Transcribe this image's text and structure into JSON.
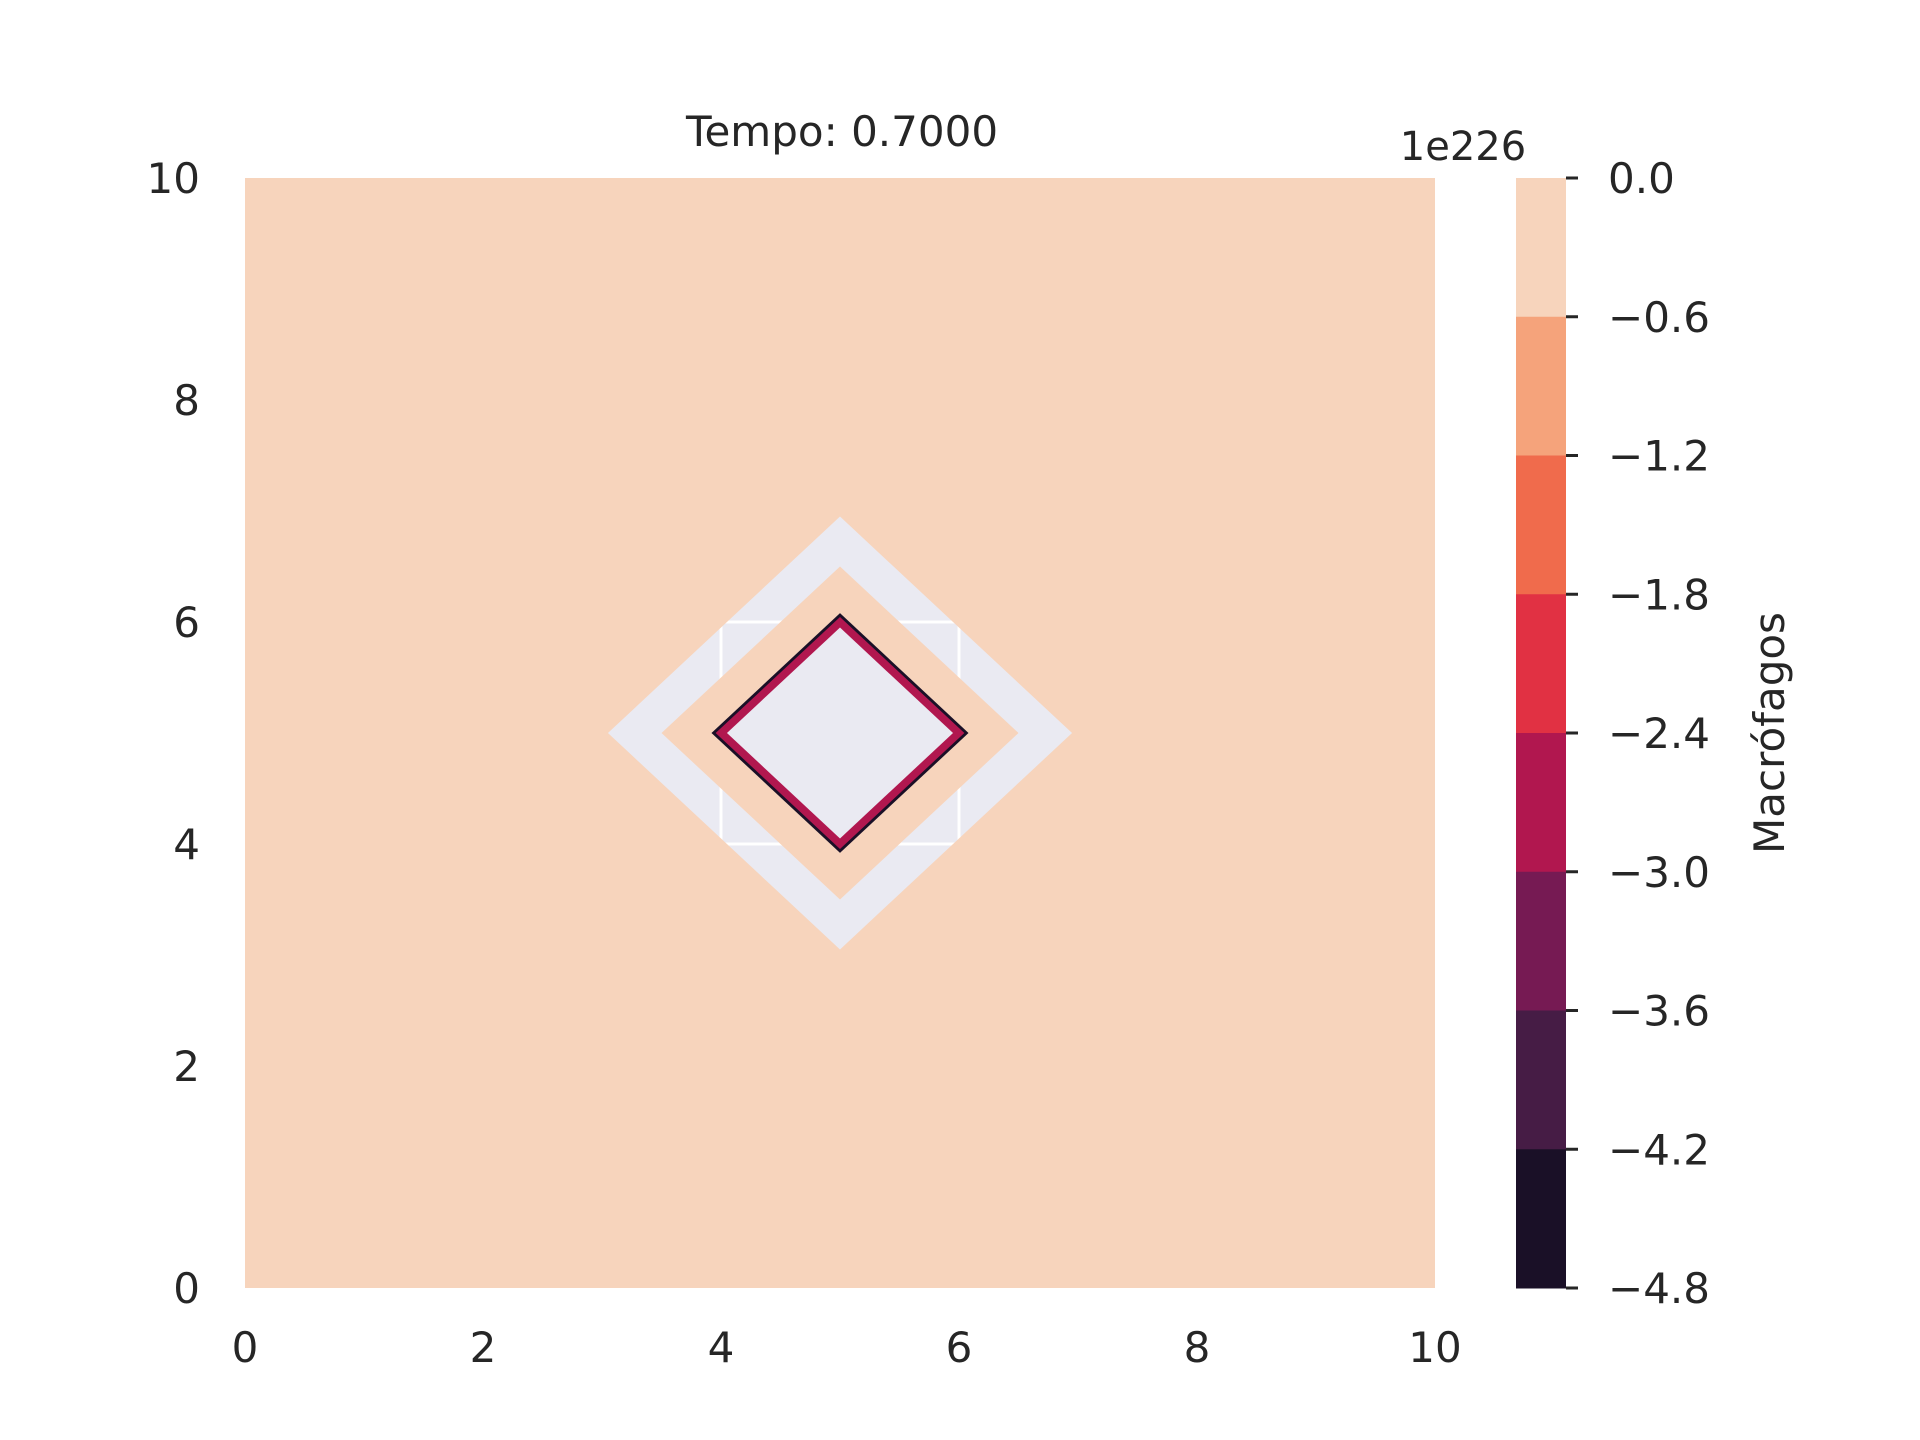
{
  "chart_data": {
    "type": "heatmap",
    "title": "Tempo: 0.7000",
    "xlabel": "",
    "ylabel": "",
    "xlim": [
      0,
      10
    ],
    "ylim": [
      0,
      10
    ],
    "x_ticks": [
      "0",
      "2",
      "4",
      "6",
      "8",
      "10"
    ],
    "y_ticks": [
      "0",
      "2",
      "4",
      "6",
      "8",
      "10"
    ],
    "grid": true,
    "background_color": "#eaeaf2",
    "field_color": "#f7d4bc",
    "regions": {
      "outer_ring_center": [
        5,
        5
      ],
      "outer_ring_outer_half_diagonal": 1.95,
      "outer_ring_inner_half_diagonal": 1.5,
      "inner_blank_half_diagonal": 0.95,
      "inner_dark_edge_half_diagonal": 1.08
    },
    "colorbar": {
      "label": "Macrófagos",
      "offset_text": "1e226",
      "ticks": [
        "0.0",
        "−0.6",
        "−1.2",
        "−1.8",
        "−2.4",
        "−3.0",
        "−3.6",
        "−4.2",
        "−4.8"
      ],
      "levels": [
        0.0,
        -0.6,
        -1.2,
        -1.8,
        -2.4,
        -3.0,
        -3.6,
        -4.2,
        -4.8
      ],
      "colors": [
        "#f7d4bc",
        "#f5a37b",
        "#f06b4c",
        "#e13143",
        "#b1174f",
        "#761a53",
        "#461c45",
        "#1a1027"
      ]
    }
  }
}
